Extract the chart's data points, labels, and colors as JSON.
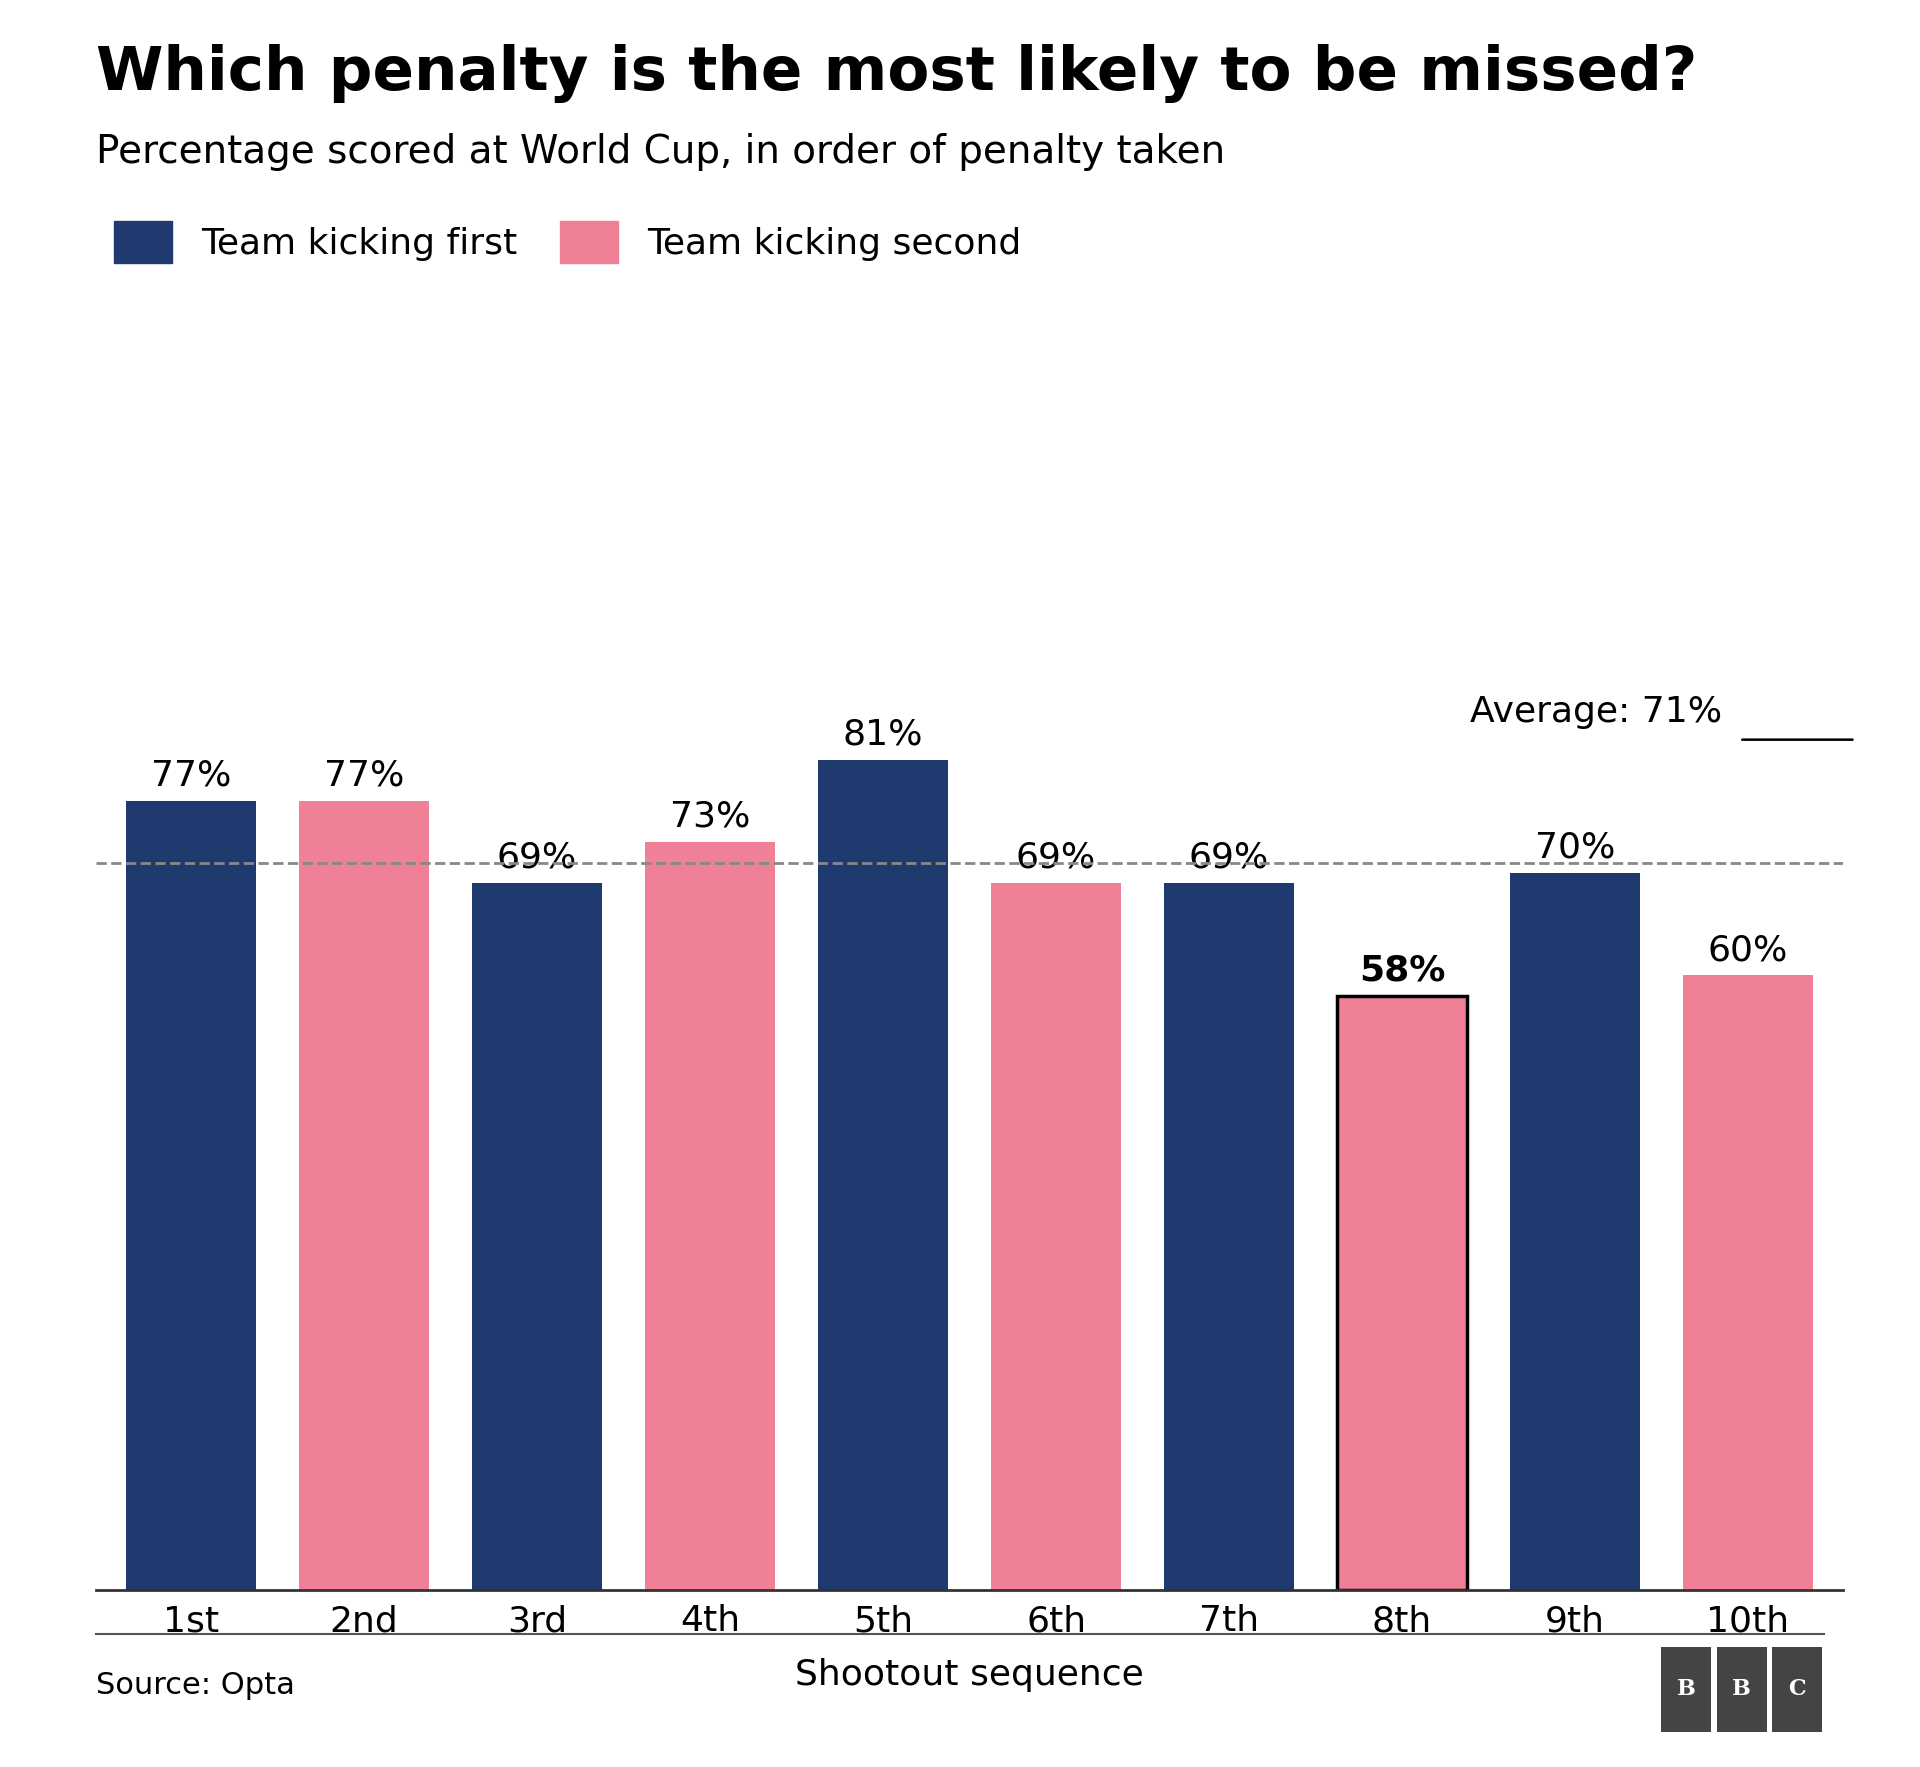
{
  "title": "Which penalty is the most likely to be missed?",
  "subtitle": "Percentage scored at World Cup, in order of penalty taken",
  "xlabel": "Shootout sequence",
  "categories": [
    "1st",
    "2nd",
    "3rd",
    "4th",
    "5th",
    "6th",
    "7th",
    "8th",
    "9th",
    "10th"
  ],
  "values": [
    77,
    77,
    69,
    73,
    81,
    69,
    69,
    58,
    70,
    60
  ],
  "colors": [
    "#1e3a6e",
    "#f08096",
    "#1e3a6e",
    "#f08096",
    "#1e3a6e",
    "#f08096",
    "#1e3a6e",
    "#f08096",
    "#1e3a6e",
    "#f08096"
  ],
  "average_value": 71,
  "average_label": "Average: 71%",
  "bar_width": 0.75,
  "ylim": [
    0,
    100
  ],
  "source_text": "Source: Opta",
  "legend_first": "Team kicking first",
  "legend_second": "Team kicking second",
  "color_first": "#1e3a6e",
  "color_second": "#f08096",
  "highlighted_bar_index": 7,
  "background_color": "#ffffff",
  "title_fontsize": 44,
  "subtitle_fontsize": 28,
  "label_fontsize": 26,
  "tick_fontsize": 26,
  "legend_fontsize": 26,
  "value_fontsize": 26,
  "source_fontsize": 22
}
